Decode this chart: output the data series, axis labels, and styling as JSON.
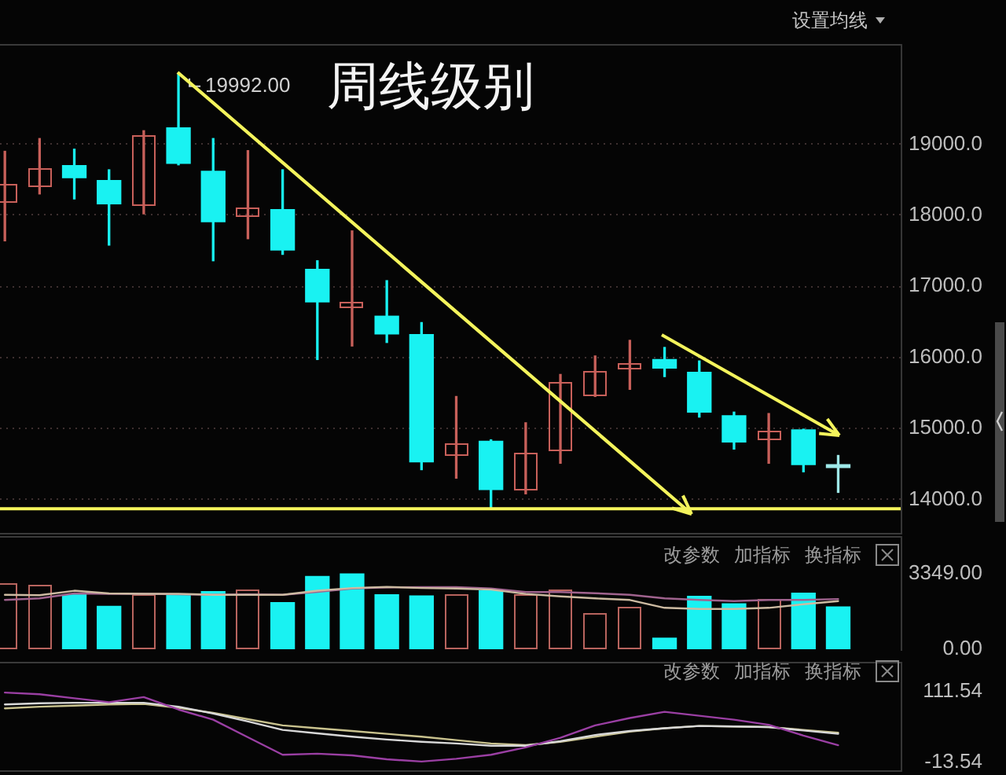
{
  "chart_data": [
    {
      "type": "candlestick",
      "title": "周线级别",
      "categories": [
        null,
        null,
        null,
        null,
        null,
        null,
        null,
        null,
        null,
        null,
        null,
        null,
        null,
        null,
        null,
        null,
        null,
        null,
        null,
        null,
        null,
        null,
        null,
        null,
        null
      ],
      "ohlc": [
        [
          18170,
          18900,
          17640,
          18440
        ],
        [
          18400,
          19080,
          18300,
          18660
        ],
        [
          18700,
          18930,
          18230,
          18530
        ],
        [
          18490,
          18640,
          17580,
          18160
        ],
        [
          18140,
          19190,
          18020,
          19130
        ],
        [
          19230,
          19992,
          18710,
          18730
        ],
        [
          18620,
          19080,
          17360,
          17910
        ],
        [
          17970,
          18910,
          17670,
          18120
        ],
        [
          18080,
          18640,
          17450,
          17510
        ],
        [
          17240,
          17360,
          15970,
          16780
        ],
        [
          16690,
          17780,
          16160,
          16780
        ],
        [
          16580,
          17080,
          16210,
          16330
        ],
        [
          16320,
          16490,
          14420,
          14530
        ],
        [
          14620,
          15450,
          14300,
          14780
        ],
        [
          14820,
          14840,
          13890,
          14140
        ],
        [
          14120,
          15080,
          14080,
          14660
        ],
        [
          14670,
          15760,
          14510,
          15660
        ],
        [
          15450,
          16020,
          15450,
          15800
        ],
        [
          15840,
          16240,
          15550,
          15930
        ],
        [
          15970,
          16140,
          15730,
          15850
        ],
        [
          15790,
          15950,
          15160,
          15230
        ],
        [
          15180,
          15230,
          14710,
          14810
        ],
        [
          14840,
          15210,
          14510,
          14960
        ],
        [
          14980,
          14990,
          14390,
          14490
        ],
        [
          14490,
          14620,
          14100,
          14450
        ]
      ],
      "colors": [
        "#c8605a",
        "#c8605a",
        "#19f2f2",
        "#19f2f2",
        "#c8605a",
        "#19f2f2",
        "#19f2f2",
        "#c8605a",
        "#19f2f2",
        "#19f2f2",
        "#c8605a",
        "#19f2f2",
        "#19f2f2",
        "#c8605a",
        "#19f2f2",
        "#c8605a",
        "#c8605a",
        "#c8605a",
        "#c8605a",
        "#19f2f2",
        "#19f2f2",
        "#19f2f2",
        "#c8605a",
        "#19f2f2",
        "#9ee8e8"
      ],
      "ylim": [
        13530,
        20410
      ],
      "yticks": [
        {
          "value": 14000,
          "label": "14000.0"
        },
        {
          "value": 15000,
          "label": "15000.0"
        },
        {
          "value": 16000,
          "label": "16000.0"
        },
        {
          "value": 17000,
          "label": "17000.0"
        },
        {
          "value": 18000,
          "label": "18000.0"
        },
        {
          "value": 19000,
          "label": "19000.0"
        }
      ],
      "grid": "y",
      "ref_lines": [
        {
          "axis": "y",
          "value": 13870,
          "color": "#f4f45c"
        }
      ],
      "annotations": [
        "19992.00",
        "设置均线"
      ]
    },
    {
      "type": "bar",
      "categories": [
        null,
        null,
        null,
        null,
        null,
        null,
        null,
        null,
        null,
        null,
        null,
        null,
        null,
        null,
        null,
        null,
        null,
        null,
        null,
        null,
        null,
        null,
        null,
        null,
        null
      ],
      "series": [
        {
          "values": [
            2930,
            2880,
            2420,
            1910,
            2460,
            2460,
            2560,
            2650,
            2070,
            3230,
            3350,
            2420,
            2370,
            2460,
            2600,
            2460,
            2650,
            1610,
            1910,
            490,
            2350,
            2020,
            2230,
            2490,
            1880
          ],
          "colors": [
            "#b8645e",
            "#b8645e",
            "#19f2f2",
            "#19f2f2",
            "#b8645e",
            "#19f2f2",
            "#19f2f2",
            "#b8645e",
            "#19f2f2",
            "#19f2f2",
            "#19f2f2",
            "#19f2f2",
            "#19f2f2",
            "#b8645e",
            "#19f2f2",
            "#b8645e",
            "#b8645e",
            "#b8645e",
            "#b8645e",
            "#19f2f2",
            "#19f2f2",
            "#19f2f2",
            "#b8645e",
            "#19f2f2",
            "#19f2f2"
          ]
        },
        {
          "type": "line",
          "color": "#cdbba2",
          "values": [
            2420,
            2400,
            2600,
            2480,
            2460,
            2460,
            2420,
            2420,
            2420,
            2600,
            2720,
            2770,
            2720,
            2700,
            2650,
            2460,
            2350,
            2260,
            2190,
            1840,
            1790,
            1790,
            1840,
            2000,
            2140
          ]
        },
        {
          "type": "line",
          "color": "#a0638e",
          "values": [
            2190,
            2260,
            2480,
            2460,
            2460,
            2440,
            2420,
            2440,
            2420,
            2550,
            2700,
            2750,
            2760,
            2760,
            2700,
            2540,
            2540,
            2490,
            2420,
            2260,
            2190,
            2140,
            2190,
            2190,
            2230
          ]
        }
      ],
      "ylim": [
        0,
        5030
      ],
      "yticks": [
        {
          "value": 0,
          "label": "0.00"
        },
        {
          "value": 3349,
          "label": "3349.00"
        }
      ],
      "annotations": [
        "改参数",
        "加指标",
        "换指标"
      ]
    },
    {
      "type": "line",
      "categories": [
        null,
        null,
        null,
        null,
        null,
        null,
        null,
        null,
        null,
        null,
        null,
        null,
        null,
        null,
        null,
        null,
        null,
        null,
        null,
        null,
        null,
        null,
        null,
        null,
        null
      ],
      "series": [
        {
          "color": "#9a3fa3",
          "values": [
            110,
            107,
            100,
            93,
            102,
            80,
            62,
            31,
            0,
            2,
            -1,
            -8,
            -12,
            -7,
            0,
            13,
            30,
            52,
            65,
            76,
            69,
            62,
            53,
            34,
            17
          ]
        },
        {
          "color": "#d8d8d8",
          "values": [
            89,
            91,
            92,
            92,
            92,
            85,
            73,
            59,
            44,
            38,
            32,
            27,
            23,
            20,
            16,
            16,
            24,
            35,
            42,
            47,
            51,
            50,
            49,
            43,
            37
          ]
        },
        {
          "color": "#c9c28e",
          "values": [
            82,
            85,
            87,
            89,
            90,
            83,
            74,
            63,
            52,
            47,
            42,
            37,
            32,
            26,
            20,
            17,
            23,
            32,
            41,
            47,
            51,
            50,
            49,
            44,
            39
          ]
        }
      ],
      "ylim": [
        -27.4,
        164.4
      ],
      "yticks": [
        -13.54,
        111.54
      ],
      "annotations": [
        "改参数",
        "加指标",
        "换指标"
      ]
    }
  ]
}
